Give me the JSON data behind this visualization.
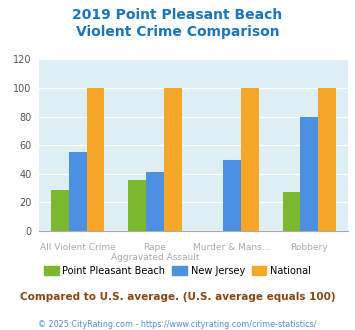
{
  "title_line1": "2019 Point Pleasant Beach",
  "title_line2": "Violent Crime Comparison",
  "title_color": "#1a75bc",
  "series": {
    "Point Pleasant Beach": [
      29,
      36,
      0,
      27
    ],
    "New Jersey": [
      55,
      41,
      50,
      80
    ],
    "National": [
      100,
      100,
      100,
      100
    ]
  },
  "colors": {
    "Point Pleasant Beach": "#7cb82f",
    "New Jersey": "#4d8fe0",
    "National": "#f5a828"
  },
  "ylim": [
    0,
    120
  ],
  "yticks": [
    0,
    20,
    40,
    60,
    80,
    100,
    120
  ],
  "plot_bg": "#ddeef4",
  "grid_color": "#ffffff",
  "top_labels": [
    "",
    "Rape",
    "Murder & Mans...",
    ""
  ],
  "bot_labels": [
    "All Violent Crime",
    "Aggravated Assault",
    "",
    "Robbery"
  ],
  "note": "Compared to U.S. average. (U.S. average equals 100)",
  "note_color": "#8B4513",
  "note_fontsize": 7.5,
  "copyright": "© 2025 CityRating.com - https://www.cityrating.com/crime-statistics/",
  "copyright_color": "#4d8fe0",
  "copyright_fontsize": 5.8,
  "legend_labels": [
    "Point Pleasant Beach",
    "New Jersey",
    "National"
  ]
}
